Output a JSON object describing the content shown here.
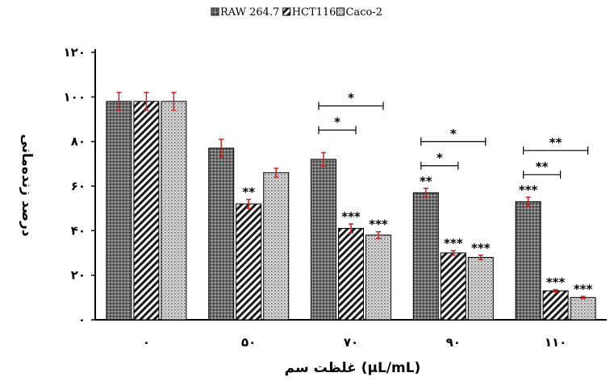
{
  "chart_data": {
    "type": "bar",
    "title": "",
    "xlabel": "غلظت سم (µL/mL)",
    "ylabel": "درصد زنده‌مانی",
    "categories": [
      "۰",
      "۵۰",
      "۷۰",
      "۹۰",
      "۱۱۰"
    ],
    "y_ticks": [
      "۰",
      "۲۰",
      "۴۰",
      "۶۰",
      "۸۰",
      "۱۰۰",
      "۱۲۰"
    ],
    "ylim": [
      0,
      120
    ],
    "grid": false,
    "legend_position": "top-center",
    "series": [
      {
        "name": "RAW 264.7",
        "pattern": "dots-dark",
        "values": [
          98,
          77,
          72,
          57,
          53
        ],
        "errors": [
          4,
          4,
          3,
          2,
          2
        ],
        "significance": [
          "",
          "",
          "",
          "**",
          "***"
        ]
      },
      {
        "name": "HCT116",
        "pattern": "diagonal",
        "values": [
          98,
          52,
          41,
          30,
          13
        ],
        "errors": [
          4,
          2,
          2,
          1,
          0.5
        ],
        "significance": [
          "",
          "**",
          "***",
          "***",
          "***"
        ]
      },
      {
        "name": "Caco-2",
        "pattern": "dots-light",
        "values": [
          98,
          66,
          38,
          28,
          10
        ],
        "errors": [
          4,
          2,
          1.5,
          1,
          0.5
        ],
        "significance": [
          "",
          "",
          "***",
          "***",
          "***"
        ]
      }
    ],
    "comparisons": [
      {
        "group": 2,
        "from_series": 0,
        "to_series": 1,
        "label": "*",
        "level": 0
      },
      {
        "group": 2,
        "from_series": 0,
        "to_series": 2,
        "label": "*",
        "level": 1
      },
      {
        "group": 3,
        "from_series": 0,
        "to_series": 1,
        "label": "*",
        "level": 0
      },
      {
        "group": 3,
        "from_series": 0,
        "to_series": 2,
        "label": "*",
        "level": 1
      },
      {
        "group": 4,
        "from_series": 0,
        "to_series": 1,
        "label": "**",
        "level": 0
      },
      {
        "group": 4,
        "from_series": 0,
        "to_series": 2,
        "label": "**",
        "level": 1
      }
    ],
    "colors": {
      "bar_outline": "#000000",
      "error_bar": "#cc2222",
      "axis": "#000000"
    }
  }
}
